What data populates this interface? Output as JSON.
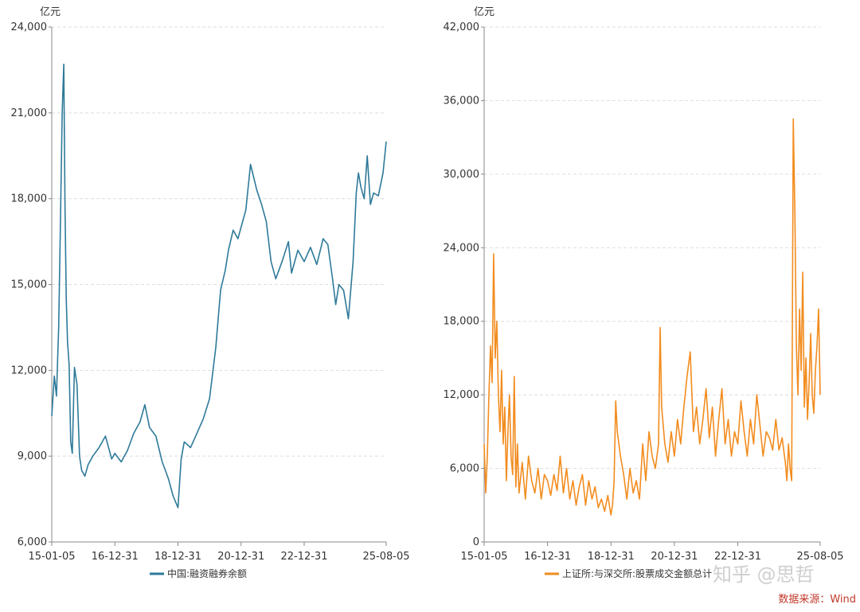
{
  "colors": {
    "margin_line": "#2e7a99",
    "turnover_line": "#f28c1e",
    "source_text": "#c0392b",
    "axis": "#888888",
    "grid": "#dddddd"
  },
  "watermark": "知乎 @思哲",
  "source": "数据来源：Wind",
  "chart_data": [
    {
      "type": "line",
      "unit_label": "亿元",
      "legend": "中国:融资融券余额",
      "ylim": [
        6000,
        24000
      ],
      "y_ticks": [
        6000,
        9000,
        12000,
        15000,
        18000,
        21000,
        24000
      ],
      "y_tick_labels": [
        "6,000",
        "9,000",
        "12,000",
        "15,000",
        "18,000",
        "21,000",
        "24,000"
      ],
      "x_tick_labels": [
        "15-01-05",
        "16-12-31",
        "18-12-31",
        "20-12-31",
        "22-12-31",
        "25-08-05"
      ],
      "x_range": [
        2015.0,
        2025.6
      ],
      "x_ticks": [
        2015.0,
        2017.0,
        2019.0,
        2021.0,
        2023.0,
        2025.6
      ],
      "series": [
        {
          "name": "中国:融资融券余额",
          "x": [
            2015.0,
            2015.08,
            2015.15,
            2015.22,
            2015.28,
            2015.33,
            2015.38,
            2015.42,
            2015.46,
            2015.5,
            2015.55,
            2015.6,
            2015.65,
            2015.72,
            2015.8,
            2015.88,
            2015.95,
            2016.05,
            2016.15,
            2016.3,
            2016.5,
            2016.7,
            2016.9,
            2017.0,
            2017.2,
            2017.4,
            2017.6,
            2017.8,
            2017.95,
            2018.1,
            2018.3,
            2018.5,
            2018.7,
            2018.85,
            2019.0,
            2019.1,
            2019.2,
            2019.4,
            2019.6,
            2019.8,
            2020.0,
            2020.2,
            2020.35,
            2020.5,
            2020.6,
            2020.75,
            2020.9,
            2021.0,
            2021.15,
            2021.3,
            2021.5,
            2021.65,
            2021.8,
            2021.95,
            2022.1,
            2022.3,
            2022.5,
            2022.6,
            2022.8,
            2023.0,
            2023.2,
            2023.4,
            2023.6,
            2023.75,
            2023.9,
            2024.0,
            2024.1,
            2024.25,
            2024.4,
            2024.55,
            2024.65,
            2024.72,
            2024.8,
            2024.9,
            2025.0,
            2025.1,
            2025.2,
            2025.35,
            2025.5,
            2025.6
          ],
          "values": [
            10400,
            11800,
            11100,
            13500,
            17500,
            21000,
            22700,
            17800,
            14500,
            13000,
            12200,
            9500,
            9100,
            12100,
            11500,
            9000,
            8500,
            8300,
            8700,
            9000,
            9300,
            9700,
            8900,
            9100,
            8800,
            9200,
            9800,
            10200,
            10800,
            10000,
            9700,
            8800,
            8200,
            7600,
            7200,
            8900,
            9500,
            9300,
            9800,
            10300,
            11000,
            12800,
            14800,
            15500,
            16200,
            16900,
            16600,
            17000,
            17600,
            19200,
            18300,
            17800,
            17200,
            15800,
            15200,
            15800,
            16500,
            15400,
            16200,
            15800,
            16300,
            15700,
            16600,
            16400,
            15200,
            14300,
            15000,
            14800,
            13800,
            15800,
            18200,
            18900,
            18400,
            18000,
            19500,
            17800,
            18200,
            18100,
            18900,
            20000
          ]
        }
      ]
    },
    {
      "type": "line",
      "unit_label": "亿元",
      "legend": "上证所:与深交所:股票成交金额总计",
      "ylim": [
        0,
        42000
      ],
      "y_ticks": [
        0,
        6000,
        12000,
        18000,
        24000,
        30000,
        36000,
        42000
      ],
      "y_tick_labels": [
        "0",
        "6,000",
        "12,000",
        "18,000",
        "24,000",
        "30,000",
        "36,000",
        "42,000"
      ],
      "x_tick_labels": [
        "15-01-05",
        "16-12-31",
        "18-12-31",
        "20-12-31",
        "22-12-31",
        "25-08-05"
      ],
      "x_range": [
        2015.0,
        2025.6
      ],
      "x_ticks": [
        2015.0,
        2017.0,
        2019.0,
        2021.0,
        2023.0,
        2025.6
      ],
      "series": [
        {
          "name": "上证所:与深交所:股票成交金额总计",
          "x": [
            2015.0,
            2015.05,
            2015.1,
            2015.15,
            2015.2,
            2015.25,
            2015.3,
            2015.35,
            2015.4,
            2015.45,
            2015.5,
            2015.55,
            2015.6,
            2015.65,
            2015.7,
            2015.75,
            2015.8,
            2015.85,
            2015.9,
            2015.95,
            2016.0,
            2016.05,
            2016.1,
            2016.2,
            2016.3,
            2016.4,
            2016.5,
            2016.6,
            2016.7,
            2016.8,
            2016.9,
            2017.0,
            2017.1,
            2017.2,
            2017.3,
            2017.4,
            2017.5,
            2017.6,
            2017.7,
            2017.8,
            2017.9,
            2018.0,
            2018.1,
            2018.2,
            2018.3,
            2018.4,
            2018.5,
            2018.6,
            2018.7,
            2018.8,
            2018.9,
            2019.0,
            2019.05,
            2019.1,
            2019.15,
            2019.2,
            2019.3,
            2019.4,
            2019.5,
            2019.6,
            2019.7,
            2019.8,
            2019.9,
            2020.0,
            2020.05,
            2020.1,
            2020.2,
            2020.3,
            2020.4,
            2020.5,
            2020.55,
            2020.6,
            2020.7,
            2020.8,
            2020.9,
            2021.0,
            2021.1,
            2021.2,
            2021.3,
            2021.4,
            2021.5,
            2021.6,
            2021.7,
            2021.8,
            2021.9,
            2022.0,
            2022.1,
            2022.2,
            2022.3,
            2022.4,
            2022.5,
            2022.6,
            2022.7,
            2022.8,
            2022.9,
            2023.0,
            2023.1,
            2023.2,
            2023.3,
            2023.4,
            2023.5,
            2023.6,
            2023.7,
            2023.8,
            2023.9,
            2024.0,
            2024.1,
            2024.2,
            2024.3,
            2024.4,
            2024.5,
            2024.55,
            2024.6,
            2024.65,
            2024.7,
            2024.75,
            2024.8,
            2024.85,
            2024.9,
            2024.95,
            2025.0,
            2025.05,
            2025.1,
            2025.15,
            2025.2,
            2025.25,
            2025.3,
            2025.35,
            2025.4,
            2025.45,
            2025.5,
            2025.55,
            2025.6
          ],
          "values": [
            8000,
            4000,
            7000,
            12000,
            16000,
            13000,
            23500,
            15000,
            18000,
            12000,
            9000,
            14000,
            8000,
            11000,
            5000,
            9000,
            12000,
            7000,
            5500,
            13500,
            4500,
            8000,
            4000,
            6500,
            3500,
            7000,
            5000,
            4000,
            6000,
            3500,
            5500,
            5000,
            3800,
            5500,
            4200,
            7000,
            4000,
            6000,
            3500,
            5000,
            3000,
            4500,
            5500,
            3000,
            5000,
            3500,
            4500,
            2800,
            3500,
            2500,
            3800,
            2200,
            3000,
            5000,
            11500,
            9000,
            7000,
            5500,
            3500,
            6000,
            4000,
            5000,
            3500,
            8000,
            6500,
            5000,
            9000,
            7000,
            6000,
            8000,
            17500,
            11000,
            8000,
            6500,
            9000,
            7000,
            10000,
            8000,
            11000,
            13500,
            15500,
            9000,
            11000,
            8000,
            10000,
            12500,
            8500,
            11000,
            7000,
            10000,
            12500,
            8000,
            10000,
            7000,
            9000,
            8000,
            11500,
            9000,
            7000,
            10000,
            8000,
            12000,
            9500,
            7000,
            9000,
            8500,
            7500,
            10000,
            7500,
            8500,
            6500,
            5000,
            8000,
            6000,
            5000,
            34500,
            27000,
            16000,
            12000,
            19000,
            14000,
            22000,
            11000,
            15000,
            10000,
            13000,
            17000,
            12000,
            10500,
            14000,
            16000,
            19000,
            12000
          ]
        }
      ]
    }
  ]
}
